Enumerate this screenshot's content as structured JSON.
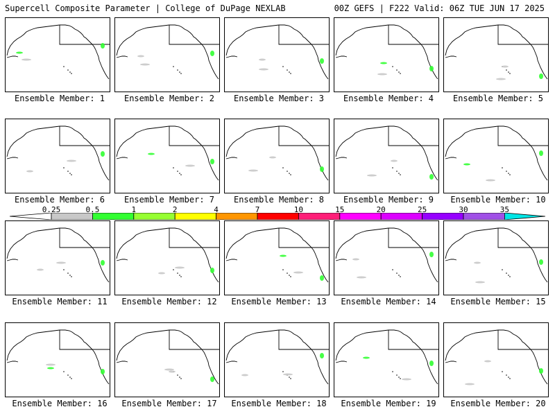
{
  "header": {
    "left": "Supercell Composite Parameter | College of DuPage NEXLAB",
    "right": "00Z GEFS | F222 Valid: 06Z TUE JUN 17 2025"
  },
  "members": [
    "Ensemble Member: 1",
    "Ensemble Member: 2",
    "Ensemble Member: 3",
    "Ensemble Member: 4",
    "Ensemble Member: 5",
    "Ensemble Member: 6",
    "Ensemble Member: 7",
    "Ensemble Member: 8",
    "Ensemble Member: 9",
    "Ensemble Member: 10",
    "Ensemble Member: 11",
    "Ensemble Member: 12",
    "Ensemble Member: 13",
    "Ensemble Member: 14",
    "Ensemble Member: 15",
    "Ensemble Member: 16",
    "Ensemble Member: 17",
    "Ensemble Member: 18",
    "Ensemble Member: 19",
    "Ensemble Member: 20"
  ],
  "colorbar": {
    "labels": [
      "0.25",
      "0.5",
      "1",
      "2",
      "4",
      "7",
      "10",
      "15",
      "20",
      "25",
      "30",
      "35"
    ],
    "colors": [
      "#c8c8c8",
      "#32ff32",
      "#96ff32",
      "#ffff00",
      "#ff9600",
      "#ff0000",
      "#ff1e78",
      "#ff00ff",
      "#dc00ff",
      "#9600ff",
      "#a050e6",
      "#00e6e6"
    ]
  }
}
